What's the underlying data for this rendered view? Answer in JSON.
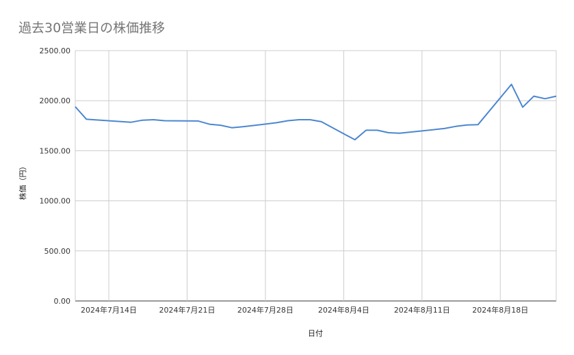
{
  "chart_data": {
    "type": "line",
    "title": "過去30営業日の株価推移",
    "xlabel": "日付",
    "ylabel": "株価（円）",
    "ylim": [
      0,
      2500
    ],
    "yticks": [
      "0.00",
      "500.00",
      "1000.00",
      "1500.00",
      "2000.00",
      "2500.00"
    ],
    "xticks": [
      "2024年7月14日",
      "2024年7月21日",
      "2024年7月28日",
      "2024年8月4日",
      "2024年8月11日",
      "2024年8月18日"
    ],
    "xrange": [
      "2024-07-11",
      "2024-08-23"
    ],
    "grid": true,
    "legend": "none",
    "color": "#4a86d0",
    "series": [
      {
        "x": [
          "2024-07-11",
          "2024-07-12",
          "2024-07-16",
          "2024-07-17",
          "2024-07-18",
          "2024-07-19",
          "2024-07-22",
          "2024-07-23",
          "2024-07-24",
          "2024-07-25",
          "2024-07-26",
          "2024-07-29",
          "2024-07-30",
          "2024-07-31",
          "2024-08-01",
          "2024-08-02",
          "2024-08-05",
          "2024-08-06",
          "2024-08-07",
          "2024-08-08",
          "2024-08-09",
          "2024-08-13",
          "2024-08-14",
          "2024-08-15",
          "2024-08-16",
          "2024-08-19",
          "2024-08-20",
          "2024-08-21",
          "2024-08-22",
          "2024-08-23"
        ],
        "values": [
          1940,
          1815,
          1785,
          1805,
          1810,
          1800,
          1797,
          1765,
          1755,
          1730,
          1740,
          1780,
          1800,
          1810,
          1810,
          1790,
          1610,
          1705,
          1705,
          1680,
          1675,
          1722,
          1743,
          1757,
          1760,
          2163,
          1935,
          2045,
          2020,
          2045
        ]
      }
    ]
  }
}
